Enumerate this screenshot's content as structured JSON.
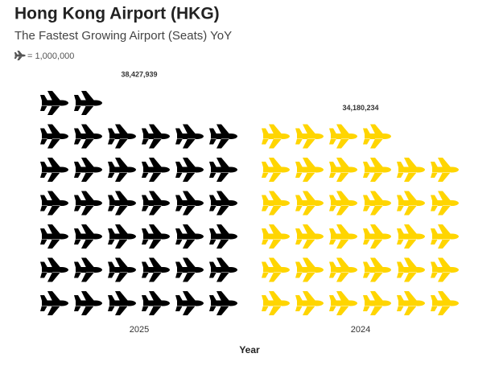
{
  "chart_data": {
    "type": "pictograph",
    "title": "Hong Kong Airport (HKG)",
    "subtitle": "The Fastest Growing Airport (Seats) YoY",
    "unit": {
      "value": 1000000,
      "label": "= 1,000,000"
    },
    "icons_per_row": 6,
    "categories": [
      "2025",
      "2024"
    ],
    "values": [
      38427939,
      34180234
    ],
    "value_labels": [
      "38,427,939",
      "34,180,234"
    ],
    "colors": [
      "#000000",
      "#ffd500"
    ],
    "x_label": "Year"
  }
}
